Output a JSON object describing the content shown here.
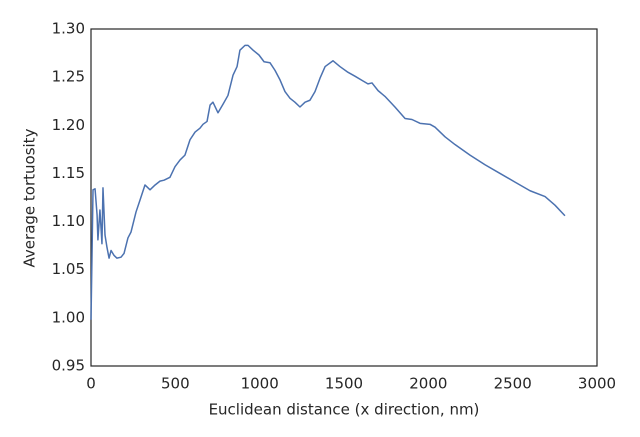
{
  "chart_data": {
    "type": "line",
    "xlabel": "Euclidean distance (x direction, nm)",
    "ylabel": "Average tortuosity",
    "x": [
      0,
      12,
      24,
      36,
      41,
      53,
      65,
      71,
      83,
      95,
      107,
      119,
      136,
      154,
      178,
      196,
      219,
      237,
      267,
      290,
      320,
      350,
      380,
      409,
      433,
      468,
      498,
      528,
      557,
      587,
      617,
      646,
      664,
      688,
      706,
      723,
      753,
      783,
      812,
      842,
      866,
      883,
      913,
      931,
      961,
      996,
      1026,
      1061,
      1091,
      1121,
      1150,
      1180,
      1209,
      1239,
      1269,
      1298,
      1328,
      1358,
      1388,
      1435,
      1476,
      1524,
      1565,
      1613,
      1642,
      1666,
      1702,
      1743,
      1802,
      1832,
      1862,
      1903,
      1951,
      2010,
      2040,
      2099,
      2158,
      2247,
      2336,
      2425,
      2514,
      2603,
      2692,
      2751,
      2810
    ],
    "series": [
      {
        "name": "Average tortuosity",
        "color": "#4c72b0",
        "values": [
          0.998,
          1.133,
          1.134,
          1.107,
          1.081,
          1.112,
          1.077,
          1.135,
          1.086,
          1.073,
          1.062,
          1.07,
          1.065,
          1.062,
          1.063,
          1.067,
          1.083,
          1.089,
          1.11,
          1.122,
          1.138,
          1.133,
          1.138,
          1.142,
          1.143,
          1.146,
          1.157,
          1.164,
          1.169,
          1.185,
          1.193,
          1.197,
          1.201,
          1.204,
          1.221,
          1.224,
          1.213,
          1.222,
          1.231,
          1.252,
          1.261,
          1.278,
          1.283,
          1.283,
          1.278,
          1.273,
          1.266,
          1.265,
          1.257,
          1.247,
          1.235,
          1.228,
          1.224,
          1.219,
          1.224,
          1.226,
          1.235,
          1.249,
          1.261,
          1.267,
          1.261,
          1.255,
          1.251,
          1.246,
          1.243,
          1.244,
          1.236,
          1.23,
          1.219,
          1.213,
          1.207,
          1.206,
          1.202,
          1.201,
          1.198,
          1.188,
          1.18,
          1.169,
          1.159,
          1.15,
          1.141,
          1.132,
          1.126,
          1.117,
          1.106
        ]
      }
    ],
    "xlim": [
      0,
      3000
    ],
    "xticks": [
      0,
      500,
      1000,
      1500,
      2000,
      2500,
      3000
    ],
    "ylim": [
      0.95,
      1.3
    ],
    "yticks": [
      0.95,
      {
        "value": 1.0,
        "label": "1.00"
      },
      1.05,
      {
        "value": 1.1,
        "label": "1.10"
      },
      1.15,
      {
        "value": 1.2,
        "label": "1.20"
      },
      1.25,
      {
        "value": 1.3,
        "label": "1.30"
      }
    ],
    "grid": false
  }
}
